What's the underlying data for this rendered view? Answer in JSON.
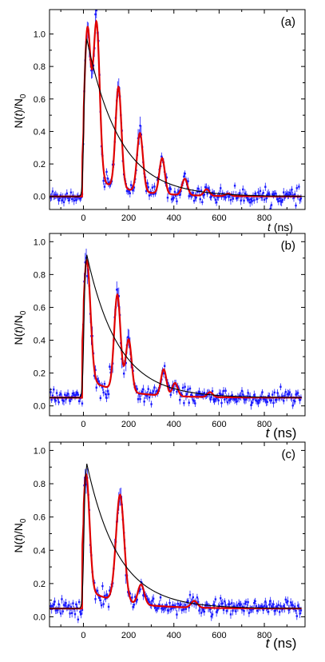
{
  "chart_data": [
    {
      "type": "scatter",
      "panel_label": "(a)",
      "xlabel": "t (ns)",
      "ylabel": "N(t)/N0",
      "xlim": [
        -150,
        980
      ],
      "ylim": [
        -0.08,
        1.15
      ],
      "xticks": [
        0,
        200,
        400,
        600,
        800
      ],
      "yticks": [
        0.0,
        0.2,
        0.4,
        0.6,
        0.8,
        1.0
      ],
      "background": 0.0,
      "peaks": [
        {
          "center": 18,
          "amplitude": 0.9,
          "width": 14
        },
        {
          "center": 58,
          "amplitude": 0.96,
          "width": 14
        },
        {
          "center": 155,
          "amplitude": 0.62,
          "width": 13
        },
        {
          "center": 250,
          "amplitude": 0.36,
          "width": 13
        },
        {
          "center": 348,
          "amplitude": 0.22,
          "width": 12
        },
        {
          "center": 448,
          "amplitude": 0.1,
          "width": 12
        },
        {
          "center": 545,
          "amplitude": 0.04,
          "width": 12
        },
        {
          "center": 640,
          "amplitude": 0.015,
          "width": 12
        }
      ],
      "decay_curve": {
        "peak": 0.97,
        "peak_time": 15,
        "decay_ns": 145,
        "offset": 0.0
      },
      "series": [
        {
          "color": "#1a1aff",
          "style": "points with error bars"
        },
        {
          "color": "#e00000",
          "style": "line"
        },
        {
          "color": "#000000",
          "style": "line"
        }
      ]
    },
    {
      "type": "scatter",
      "panel_label": "(b)",
      "xlabel": "t (ns)",
      "ylabel": "N(t)/N0",
      "xlim": [
        -150,
        980
      ],
      "ylim": [
        -0.06,
        1.05
      ],
      "xticks": [
        0,
        200,
        400,
        600,
        800
      ],
      "yticks": [
        0.0,
        0.2,
        0.4,
        0.6,
        0.8,
        1.0
      ],
      "background": 0.05,
      "peaks": [
        {
          "center": 15,
          "amplitude": 0.73,
          "width": 16
        },
        {
          "center": 150,
          "amplitude": 0.58,
          "width": 14
        },
        {
          "center": 200,
          "amplitude": 0.32,
          "width": 13
        },
        {
          "center": 355,
          "amplitude": 0.16,
          "width": 12
        },
        {
          "center": 405,
          "amplitude": 0.08,
          "width": 12
        },
        {
          "center": 560,
          "amplitude": 0.03,
          "width": 12
        }
      ],
      "decay_curve": {
        "peak": 0.92,
        "peak_time": 15,
        "decay_ns": 140,
        "offset": 0.05
      },
      "series": [
        {
          "color": "#1a1aff",
          "style": "points with error bars"
        },
        {
          "color": "#e00000",
          "style": "line"
        },
        {
          "color": "#000000",
          "style": "line"
        }
      ]
    },
    {
      "type": "scatter",
      "panel_label": "(c)",
      "xlabel": "t (ns)",
      "ylabel": "N(t)/N0",
      "xlim": [
        -150,
        980
      ],
      "ylim": [
        -0.06,
        1.05
      ],
      "xticks": [
        0,
        200,
        400,
        600,
        800
      ],
      "yticks": [
        0.0,
        0.2,
        0.4,
        0.6,
        0.8,
        1.0
      ],
      "background": 0.05,
      "peaks": [
        {
          "center": 12,
          "amplitude": 0.7,
          "width": 15
        },
        {
          "center": 162,
          "amplitude": 0.64,
          "width": 18
        },
        {
          "center": 255,
          "amplitude": 0.12,
          "width": 14
        },
        {
          "center": 490,
          "amplitude": 0.04,
          "width": 14
        }
      ],
      "decay_curve": {
        "peak": 0.92,
        "peak_time": 15,
        "decay_ns": 140,
        "offset": 0.05
      },
      "series": [
        {
          "color": "#1a1aff",
          "style": "points with error bars"
        },
        {
          "color": "#e00000",
          "style": "line"
        },
        {
          "color": "#000000",
          "style": "line"
        }
      ]
    }
  ]
}
